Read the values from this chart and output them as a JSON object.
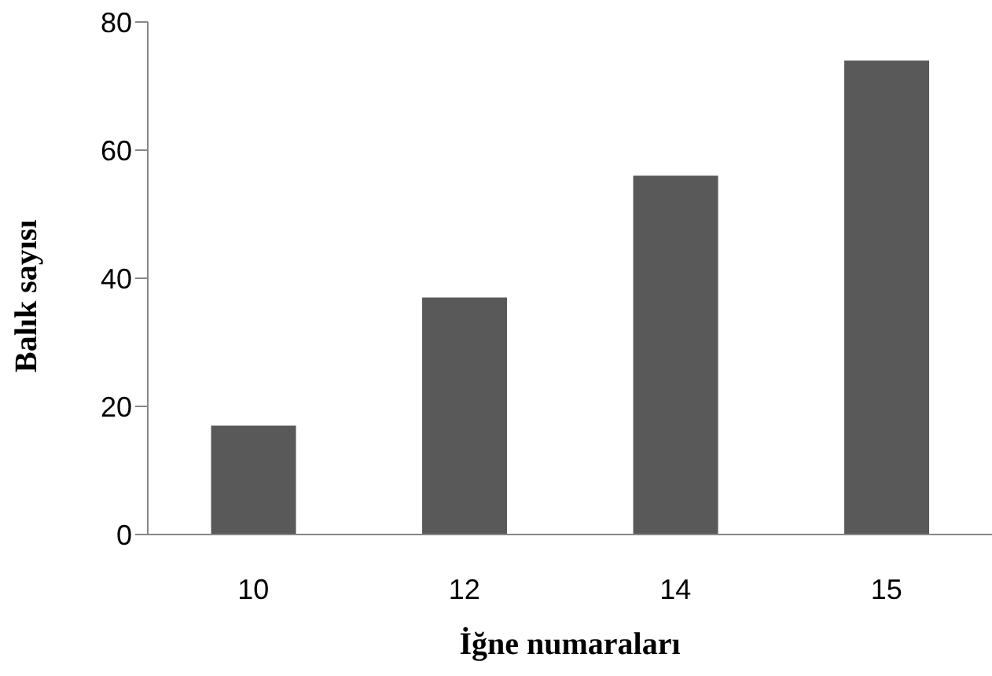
{
  "chart_data": {
    "type": "bar",
    "xlabel": "İğne numaraları",
    "ylabel": "Balık  sayısı",
    "categories": [
      "10",
      "12",
      "14",
      "15"
    ],
    "values": [
      17,
      37,
      56,
      74
    ],
    "color": "#595959",
    "ylim": [
      0,
      80
    ],
    "yticks": [
      0,
      20,
      40,
      60,
      80
    ],
    "grid": false,
    "legend": false
  }
}
